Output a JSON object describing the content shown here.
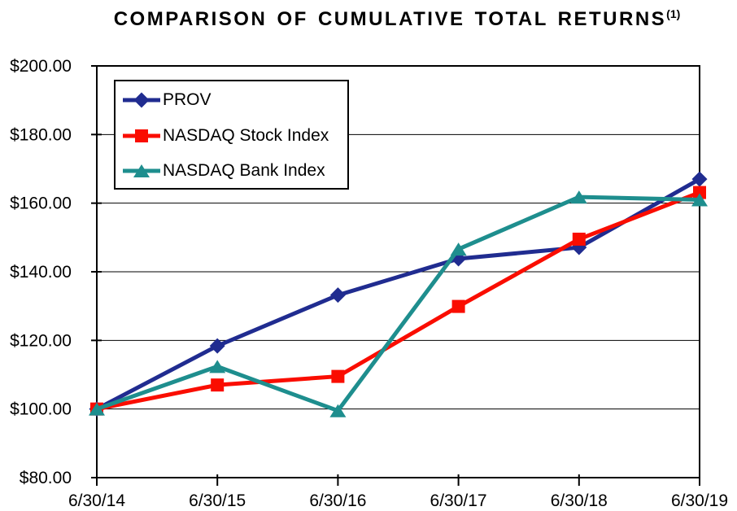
{
  "title": {
    "text": "COMPARISON OF CUMULATIVE TOTAL RETURNS",
    "superscript": "(1)"
  },
  "chart_data": {
    "type": "line",
    "title": "COMPARISON OF CUMULATIVE TOTAL RETURNS(1)",
    "categories": [
      "6/30/14",
      "6/30/15",
      "6/30/16",
      "6/30/17",
      "6/30/18",
      "6/30/19"
    ],
    "series": [
      {
        "name": "PROV",
        "color": "#202C90",
        "marker": "diamond",
        "values": [
          100.0,
          118.4,
          133.2,
          143.8,
          147.1,
          167.0
        ]
      },
      {
        "name": "NASDAQ Stock Index",
        "color": "#FA0D00",
        "marker": "square",
        "values": [
          100.0,
          107.0,
          109.5,
          129.9,
          149.5,
          163.1
        ]
      },
      {
        "name": "NASDAQ Bank Index",
        "color": "#1E8E8E",
        "marker": "triangle",
        "values": [
          100.0,
          112.4,
          99.5,
          146.6,
          161.8,
          161.0
        ]
      }
    ],
    "xlabel": "",
    "ylabel": "",
    "ylim": [
      80,
      200
    ],
    "y_ticks": [
      {
        "value": 80,
        "label": "$80.00"
      },
      {
        "value": 100,
        "label": "$100.00"
      },
      {
        "value": 120,
        "label": "$120.00"
      },
      {
        "value": 140,
        "label": "$140.00"
      },
      {
        "value": 160,
        "label": "$160.00"
      },
      {
        "value": 180,
        "label": "$180.00"
      },
      {
        "value": 200,
        "label": "$200.00"
      }
    ],
    "grid": "horizontal-only",
    "legend_position": "top-left-inside",
    "axis_color": "#000000",
    "text_color": "#000000",
    "background": "#FFFFFF"
  }
}
